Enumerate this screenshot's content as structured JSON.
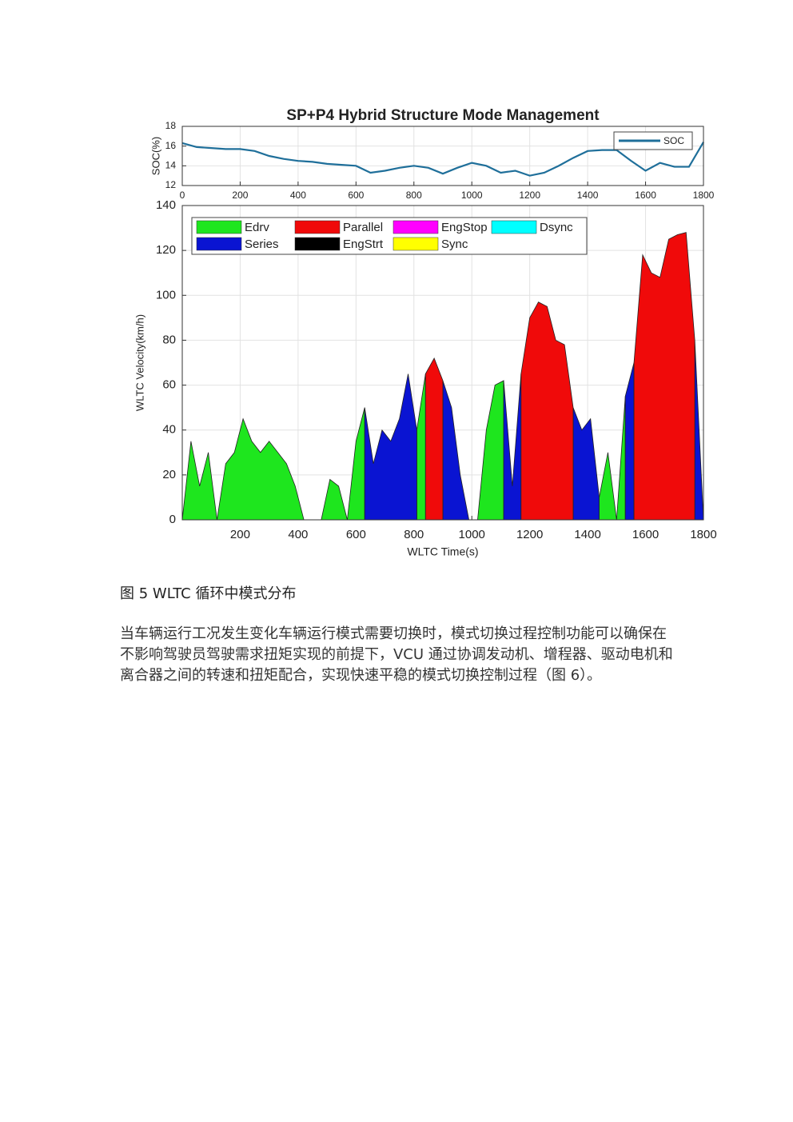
{
  "chart_data": [
    {
      "type": "line",
      "title": "SP+P4 Hybrid Structure Mode Management",
      "ylabel": "SOC(%)",
      "x": [
        0,
        50,
        100,
        150,
        200,
        250,
        300,
        350,
        400,
        450,
        500,
        550,
        600,
        650,
        700,
        750,
        800,
        850,
        900,
        950,
        1000,
        1050,
        1100,
        1150,
        1200,
        1250,
        1300,
        1350,
        1400,
        1450,
        1500,
        1550,
        1600,
        1650,
        1700,
        1750,
        1800
      ],
      "series": [
        {
          "name": "SOC",
          "color": "#1f6f9a",
          "values": [
            16.3,
            15.9,
            15.8,
            15.7,
            15.7,
            15.5,
            15.0,
            14.7,
            14.5,
            14.4,
            14.2,
            14.1,
            14.0,
            13.3,
            13.5,
            13.8,
            14.0,
            13.8,
            13.2,
            13.8,
            14.3,
            14.0,
            13.3,
            13.5,
            13.0,
            13.3,
            14.0,
            14.8,
            15.5,
            15.6,
            15.6,
            14.5,
            13.5,
            14.3,
            13.9,
            13.9,
            16.4
          ]
        }
      ],
      "xlim": [
        0,
        1800
      ],
      "xticks": [
        0,
        200,
        400,
        600,
        800,
        1000,
        1200,
        1400,
        1600,
        1800
      ],
      "ylim": [
        12,
        18
      ],
      "yticks": [
        12,
        14,
        16,
        18
      ],
      "grid": true,
      "legend": "upper right"
    },
    {
      "type": "area",
      "xlabel": "WLTC Time(s)",
      "ylabel": "WLTC Velocity(km/h)",
      "x": [
        0,
        30,
        60,
        90,
        120,
        150,
        180,
        210,
        240,
        270,
        300,
        330,
        360,
        390,
        420,
        450,
        480,
        510,
        540,
        570,
        600,
        630,
        660,
        690,
        720,
        750,
        780,
        810,
        840,
        870,
        900,
        930,
        960,
        990,
        1020,
        1050,
        1080,
        1110,
        1140,
        1170,
        1200,
        1230,
        1260,
        1290,
        1320,
        1350,
        1380,
        1410,
        1440,
        1470,
        1500,
        1530,
        1560,
        1590,
        1620,
        1650,
        1680,
        1710,
        1740,
        1770,
        1800
      ],
      "series": [
        {
          "name": "Edrv",
          "color": "#1ee61e",
          "values": [
            0,
            35,
            15,
            30,
            0,
            25,
            30,
            45,
            35,
            30,
            35,
            30,
            25,
            15,
            0,
            0,
            0,
            18,
            15,
            0,
            35,
            50,
            null,
            null,
            null,
            null,
            null,
            40,
            65,
            null,
            null,
            null,
            null,
            null,
            0,
            40,
            60,
            62,
            null,
            null,
            null,
            null,
            null,
            null,
            null,
            null,
            null,
            null,
            10,
            30,
            0,
            55,
            null,
            null,
            null,
            null,
            null,
            null,
            null,
            null,
            null
          ]
        },
        {
          "name": "Series",
          "color": "#0a14d2",
          "values": [
            null,
            null,
            null,
            null,
            null,
            null,
            null,
            null,
            null,
            null,
            null,
            null,
            null,
            null,
            null,
            null,
            null,
            null,
            null,
            null,
            null,
            50,
            25,
            40,
            35,
            45,
            65,
            40,
            null,
            null,
            62,
            50,
            20,
            0,
            null,
            null,
            null,
            62,
            15,
            65,
            null,
            null,
            null,
            null,
            null,
            50,
            40,
            45,
            10,
            null,
            null,
            55,
            70,
            null,
            null,
            null,
            null,
            null,
            null,
            80,
            0
          ]
        },
        {
          "name": "Parallel",
          "color": "#f00a0a",
          "values": [
            null,
            null,
            null,
            null,
            null,
            null,
            null,
            null,
            null,
            null,
            null,
            null,
            null,
            null,
            null,
            null,
            null,
            null,
            null,
            null,
            null,
            null,
            null,
            null,
            null,
            null,
            null,
            null,
            65,
            72,
            62,
            null,
            null,
            null,
            null,
            null,
            null,
            null,
            null,
            65,
            90,
            97,
            95,
            80,
            78,
            50,
            null,
            null,
            null,
            null,
            null,
            null,
            70,
            118,
            110,
            108,
            125,
            127,
            128,
            80,
            null
          ]
        },
        {
          "name": "EngStrt",
          "color": "#000000",
          "values": [
            null,
            null,
            null,
            null,
            null,
            null,
            null,
            null,
            null,
            null,
            null,
            null,
            null,
            null,
            null,
            null,
            null,
            null,
            null,
            null,
            null,
            null,
            null,
            null,
            null,
            null,
            null,
            null,
            null,
            null,
            null,
            null,
            null,
            null,
            null,
            null,
            null,
            null,
            null,
            null,
            null,
            null,
            null,
            null,
            null,
            null,
            null,
            null,
            null,
            null,
            null,
            null,
            null,
            null,
            null,
            null,
            null,
            null,
            null,
            null,
            null
          ]
        },
        {
          "name": "EngStop",
          "color": "#ff00ff",
          "values": [
            null,
            null,
            null,
            null,
            null,
            null,
            null,
            null,
            null,
            null,
            null,
            null,
            null,
            null,
            null,
            null,
            null,
            null,
            null,
            null,
            null,
            null,
            null,
            null,
            null,
            null,
            null,
            null,
            null,
            null,
            null,
            null,
            null,
            null,
            null,
            null,
            null,
            null,
            null,
            null,
            null,
            null,
            null,
            null,
            null,
            null,
            null,
            null,
            null,
            null,
            null,
            null,
            null,
            null,
            null,
            null,
            null,
            null,
            null,
            null,
            null
          ]
        },
        {
          "name": "Sync",
          "color": "#ffff00",
          "values": [
            null,
            null,
            null,
            null,
            null,
            null,
            null,
            null,
            null,
            null,
            null,
            null,
            null,
            null,
            null,
            null,
            null,
            null,
            null,
            null,
            null,
            null,
            null,
            null,
            null,
            null,
            null,
            null,
            null,
            null,
            null,
            null,
            null,
            null,
            null,
            null,
            null,
            null,
            null,
            null,
            null,
            null,
            null,
            null,
            null,
            null,
            null,
            null,
            null,
            null,
            null,
            null,
            null,
            null,
            null,
            null,
            null,
            null,
            null,
            null,
            null
          ]
        },
        {
          "name": "Dsync",
          "color": "#00ffff",
          "values": [
            null,
            null,
            null,
            null,
            null,
            null,
            null,
            null,
            null,
            null,
            null,
            null,
            null,
            null,
            null,
            null,
            null,
            null,
            null,
            null,
            null,
            null,
            null,
            null,
            null,
            null,
            null,
            null,
            null,
            null,
            null,
            null,
            null,
            null,
            null,
            null,
            null,
            null,
            null,
            null,
            null,
            null,
            null,
            null,
            null,
            null,
            null,
            null,
            null,
            null,
            null,
            null,
            null,
            null,
            null,
            null,
            null,
            null,
            null,
            null,
            null
          ]
        }
      ],
      "xlim": [
        0,
        1800
      ],
      "xticks": [
        200,
        400,
        600,
        800,
        1000,
        1200,
        1400,
        1600,
        1800
      ],
      "ylim": [
        0,
        140
      ],
      "yticks": [
        0,
        20,
        40,
        60,
        80,
        100,
        120,
        140
      ],
      "grid": true,
      "legend": "upper left"
    }
  ],
  "caption": "图 5 WLTC 循环中模式分布",
  "paragraph": "当车辆运行工况发生变化车辆运行模式需要切换时，模式切换过程控制功能可以确保在不影响驾驶员驾驶需求扭矩实现的前提下，VCU 通过协调发动机、增程器、驱动电机和离合器之间的转速和扭矩配合，实现快速平稳的模式切换控制过程（图 6）。"
}
